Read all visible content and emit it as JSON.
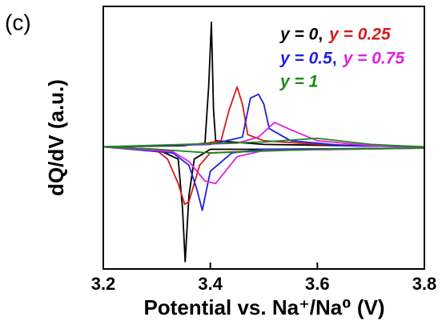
{
  "chart_data": {
    "type": "line",
    "panel_label": "(c)",
    "x_label": "Potential vs. Na⁺/Na⁰ (V)",
    "y_label": "dQ/dV (a.u.)",
    "xlim": [
      3.2,
      3.8
    ],
    "xticks": [
      3.2,
      3.4,
      3.6,
      3.8
    ],
    "ylim": [
      -1,
      1.15
    ],
    "legend_separator": ",",
    "series": [
      {
        "name": "y = 0",
        "color": "#000000",
        "x": [
          3.2,
          3.35,
          3.39,
          3.397,
          3.402,
          3.406,
          3.41,
          3.5,
          3.8,
          3.8,
          3.5,
          3.4,
          3.37,
          3.36,
          3.353,
          3.348,
          3.34,
          3.3,
          3.2
        ],
        "values": [
          0,
          0.01,
          0.03,
          0.5,
          1.02,
          0.3,
          0.05,
          0.02,
          0,
          -0.01,
          -0.02,
          -0.02,
          -0.1,
          -0.4,
          -0.94,
          -0.5,
          -0.1,
          -0.02,
          0
        ]
      },
      {
        "name": "y = 0.25",
        "color": "#d7191c",
        "x": [
          3.2,
          3.38,
          3.42,
          3.435,
          3.45,
          3.46,
          3.47,
          3.5,
          3.6,
          3.8,
          3.8,
          3.5,
          3.4,
          3.38,
          3.36,
          3.352,
          3.34,
          3.32,
          3.3,
          3.2
        ],
        "values": [
          0,
          0.02,
          0.05,
          0.3,
          0.49,
          0.35,
          0.1,
          0.05,
          0.02,
          0,
          -0.01,
          -0.03,
          -0.05,
          -0.15,
          -0.45,
          -0.47,
          -0.3,
          -0.1,
          -0.03,
          0
        ]
      },
      {
        "name": "y = 0.5",
        "color": "#1f1fe0",
        "x": [
          3.2,
          3.4,
          3.46,
          3.475,
          3.49,
          3.5,
          3.51,
          3.55,
          3.65,
          3.8,
          3.8,
          3.5,
          3.44,
          3.4,
          3.385,
          3.375,
          3.36,
          3.33,
          3.2
        ],
        "values": [
          0,
          0.02,
          0.08,
          0.4,
          0.43,
          0.35,
          0.15,
          0.05,
          0.01,
          0,
          -0.01,
          -0.02,
          -0.05,
          -0.2,
          -0.52,
          -0.35,
          -0.15,
          -0.05,
          0
        ]
      },
      {
        "name": "y = 0.75",
        "color": "#e020e0",
        "x": [
          3.2,
          3.45,
          3.49,
          3.52,
          3.55,
          3.6,
          3.7,
          3.8,
          3.8,
          3.5,
          3.45,
          3.41,
          3.39,
          3.36,
          3.33,
          3.2
        ],
        "values": [
          0,
          0.03,
          0.08,
          0.2,
          0.14,
          0.05,
          0.01,
          0,
          -0.01,
          -0.03,
          -0.08,
          -0.3,
          -0.28,
          -0.12,
          -0.04,
          0
        ]
      },
      {
        "name": "y = 1",
        "color": "#1a8a1a",
        "x": [
          3.2,
          3.5,
          3.6,
          3.7,
          3.8,
          3.8,
          3.6,
          3.4,
          3.3,
          3.2
        ],
        "values": [
          0,
          0.04,
          0.07,
          0.02,
          0,
          -0.01,
          -0.02,
          -0.05,
          -0.02,
          0
        ]
      }
    ]
  }
}
